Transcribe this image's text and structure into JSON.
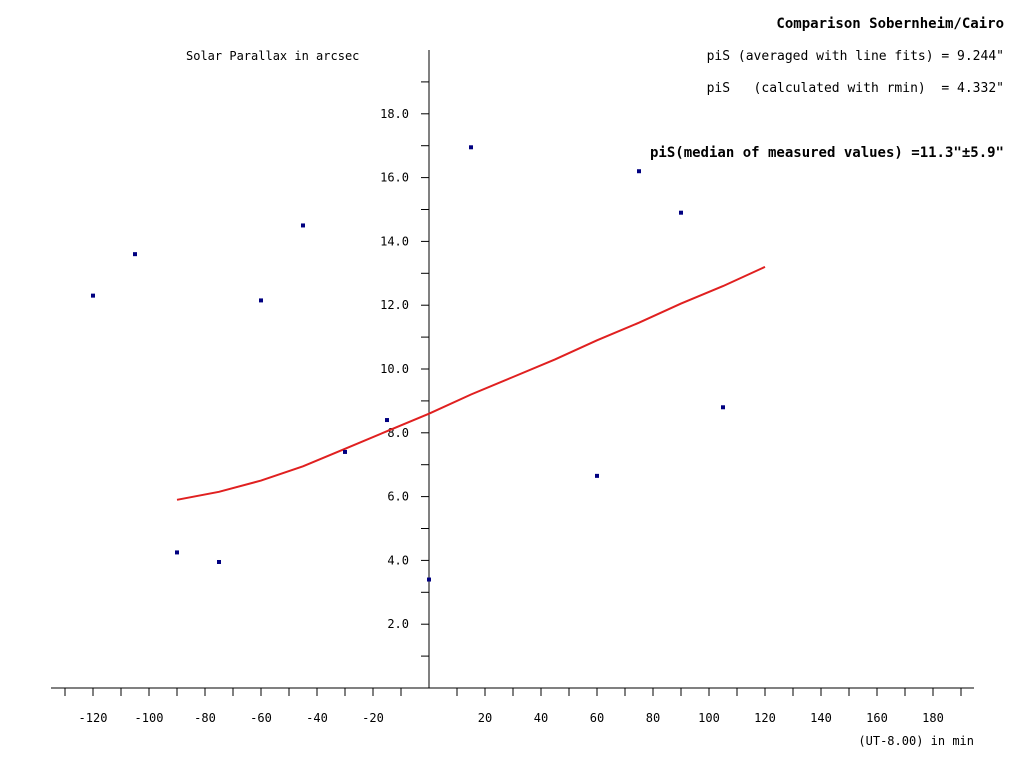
{
  "chart_data": {
    "type": "scatter",
    "title": "Comparison Sobernheim/Cairo",
    "ylabel": "Solar Parallax in arcsec",
    "xlabel": "(UT-8.00) in min",
    "annotations": [
      "piS (averaged with line fits) = 9.244\"",
      "piS   (calculated with rmin)  = 4.332\"",
      "piS(median of measured values) =11.3\"±5.9\""
    ],
    "xlim": [
      -135,
      195
    ],
    "ylim": [
      0,
      20
    ],
    "x_ticks": [
      -120,
      -100,
      -80,
      -60,
      -40,
      -20,
      20,
      40,
      60,
      80,
      100,
      120,
      140,
      160,
      180
    ],
    "x_tick_labels": [
      "-120",
      "-100",
      "-80",
      "-60",
      "-40",
      "-20",
      "20",
      "40",
      "60",
      "80",
      "100",
      "120",
      "140",
      "160",
      "180"
    ],
    "y_ticks": [
      2,
      4,
      6,
      8,
      10,
      12,
      14,
      16,
      18
    ],
    "y_tick_labels": [
      "2.0",
      "4.0",
      "6.0",
      "8.0",
      "10.0",
      "12.0",
      "14.0",
      "16.0",
      "18.0"
    ],
    "grid": false,
    "series": [
      {
        "type": "scatter",
        "color": "#000080",
        "points": [
          {
            "x": -120,
            "y": 12.3
          },
          {
            "x": -105,
            "y": 13.6
          },
          {
            "x": -90,
            "y": 4.25
          },
          {
            "x": -75,
            "y": 3.95
          },
          {
            "x": -60,
            "y": 12.15
          },
          {
            "x": -45,
            "y": 14.5
          },
          {
            "x": -30,
            "y": 7.4
          },
          {
            "x": -15,
            "y": 8.4
          },
          {
            "x": 0,
            "y": 3.4
          },
          {
            "x": 15,
            "y": 16.95
          },
          {
            "x": 60,
            "y": 6.65
          },
          {
            "x": 75,
            "y": 16.2
          },
          {
            "x": 90,
            "y": 14.9
          },
          {
            "x": 105,
            "y": 8.8
          }
        ]
      },
      {
        "type": "line",
        "color": "#e02020",
        "points": [
          {
            "x": -90,
            "y": 5.9
          },
          {
            "x": -75,
            "y": 6.15
          },
          {
            "x": -60,
            "y": 6.5
          },
          {
            "x": -45,
            "y": 6.95
          },
          {
            "x": -30,
            "y": 7.5
          },
          {
            "x": -15,
            "y": 8.05
          },
          {
            "x": 0,
            "y": 8.6
          },
          {
            "x": 15,
            "y": 9.2
          },
          {
            "x": 30,
            "y": 9.75
          },
          {
            "x": 45,
            "y": 10.3
          },
          {
            "x": 60,
            "y": 10.9
          },
          {
            "x": 75,
            "y": 11.45
          },
          {
            "x": 90,
            "y": 12.05
          },
          {
            "x": 105,
            "y": 12.6
          },
          {
            "x": 120,
            "y": 13.2
          }
        ]
      }
    ]
  }
}
